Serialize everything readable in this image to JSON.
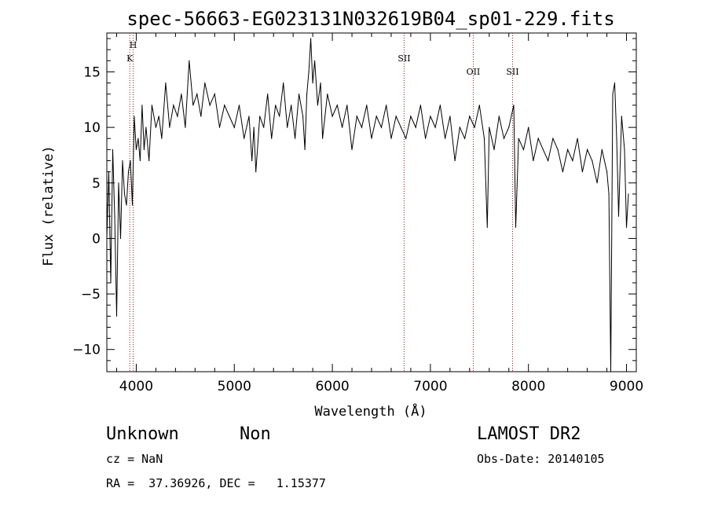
{
  "chart_data": {
    "type": "line",
    "title": "spec-56663-EG023131N032619B04_sp01-229.fits",
    "xlabel": "Wavelength (Å)",
    "ylabel": "Flux (relative)",
    "xlim": [
      3700,
      9100
    ],
    "ylim": [
      -12,
      18.5
    ],
    "x_ticks": [
      4000,
      5000,
      6000,
      7000,
      8000,
      9000
    ],
    "y_ticks": [
      -10,
      -5,
      0,
      5,
      10,
      15
    ],
    "grid": false,
    "series": [
      {
        "x": [
          3700,
          3720,
          3740,
          3760,
          3780,
          3800,
          3820,
          3840,
          3860,
          3880,
          3900,
          3920,
          3940,
          3960,
          3980,
          4000,
          4020,
          4040,
          4060,
          4080,
          4100,
          4130,
          4160,
          4200,
          4230,
          4260,
          4300,
          4340,
          4380,
          4420,
          4460,
          4500,
          4540,
          4580,
          4620,
          4660,
          4700,
          4750,
          4800,
          4850,
          4900,
          4950,
          5000,
          5050,
          5100,
          5150,
          5180,
          5200,
          5220,
          5260,
          5300,
          5340,
          5380,
          5420,
          5460,
          5500,
          5540,
          5580,
          5620,
          5660,
          5700,
          5720,
          5740,
          5760,
          5780,
          5800,
          5820,
          5850,
          5880,
          5900,
          5950,
          6000,
          6050,
          6100,
          6150,
          6200,
          6250,
          6300,
          6350,
          6400,
          6450,
          6500,
          6550,
          6600,
          6650,
          6700,
          6750,
          6800,
          6850,
          6900,
          6950,
          7000,
          7050,
          7100,
          7150,
          7200,
          7250,
          7300,
          7350,
          7400,
          7450,
          7500,
          7550,
          7580,
          7600,
          7650,
          7700,
          7750,
          7800,
          7850,
          7870,
          7900,
          7950,
          8000,
          8050,
          8100,
          8150,
          8200,
          8250,
          8300,
          8350,
          8400,
          8450,
          8500,
          8550,
          8600,
          8650,
          8700,
          8750,
          8800,
          8820,
          8840,
          8860,
          8880,
          8900,
          8920,
          8950,
          8980,
          9000,
          9020
        ],
        "y": [
          0,
          6,
          -4,
          8,
          2,
          -7,
          5,
          0,
          7,
          4,
          3,
          6,
          7,
          3,
          11,
          8,
          9,
          7,
          12,
          8,
          10,
          7,
          12,
          10,
          11,
          9,
          14,
          10,
          12,
          11,
          13,
          10,
          16,
          12,
          13,
          11,
          14,
          12,
          13,
          10,
          12,
          11,
          10,
          12,
          9,
          11,
          7,
          10,
          6,
          11,
          10,
          13,
          9,
          12,
          11,
          14,
          10,
          12,
          9,
          13,
          11,
          8,
          13,
          15,
          18,
          14,
          16,
          12,
          14,
          9,
          13,
          11,
          12,
          10,
          12,
          8,
          11,
          10,
          12,
          9,
          11,
          10,
          12,
          9,
          11,
          10,
          9,
          11,
          10,
          12,
          9,
          11,
          10,
          12,
          9,
          11,
          7,
          10,
          9,
          11,
          10,
          12,
          9,
          1,
          10,
          8,
          11,
          9,
          10,
          12,
          1,
          9,
          8,
          10,
          7,
          9,
          8,
          7,
          9,
          8,
          6,
          8,
          7,
          9,
          6,
          8,
          7,
          5,
          8,
          6,
          4,
          -12,
          13,
          14,
          9,
          2,
          11,
          8,
          1,
          4
        ]
      }
    ],
    "markers": [
      {
        "label": "K",
        "x": 3934
      },
      {
        "label": "H",
        "x": 3969
      },
      {
        "label": "SII",
        "x": 6732
      },
      {
        "label": "OII",
        "x": 7437
      },
      {
        "label": "SII",
        "x": 7838
      }
    ]
  },
  "info": {
    "class": "Unknown",
    "subclass": "Non",
    "cz": "cz = NaN",
    "coords": "RA =  37.36926, DEC =   1.15377",
    "survey": "LAMOST DR2",
    "obsdate": "Obs-Date: 20140105"
  }
}
